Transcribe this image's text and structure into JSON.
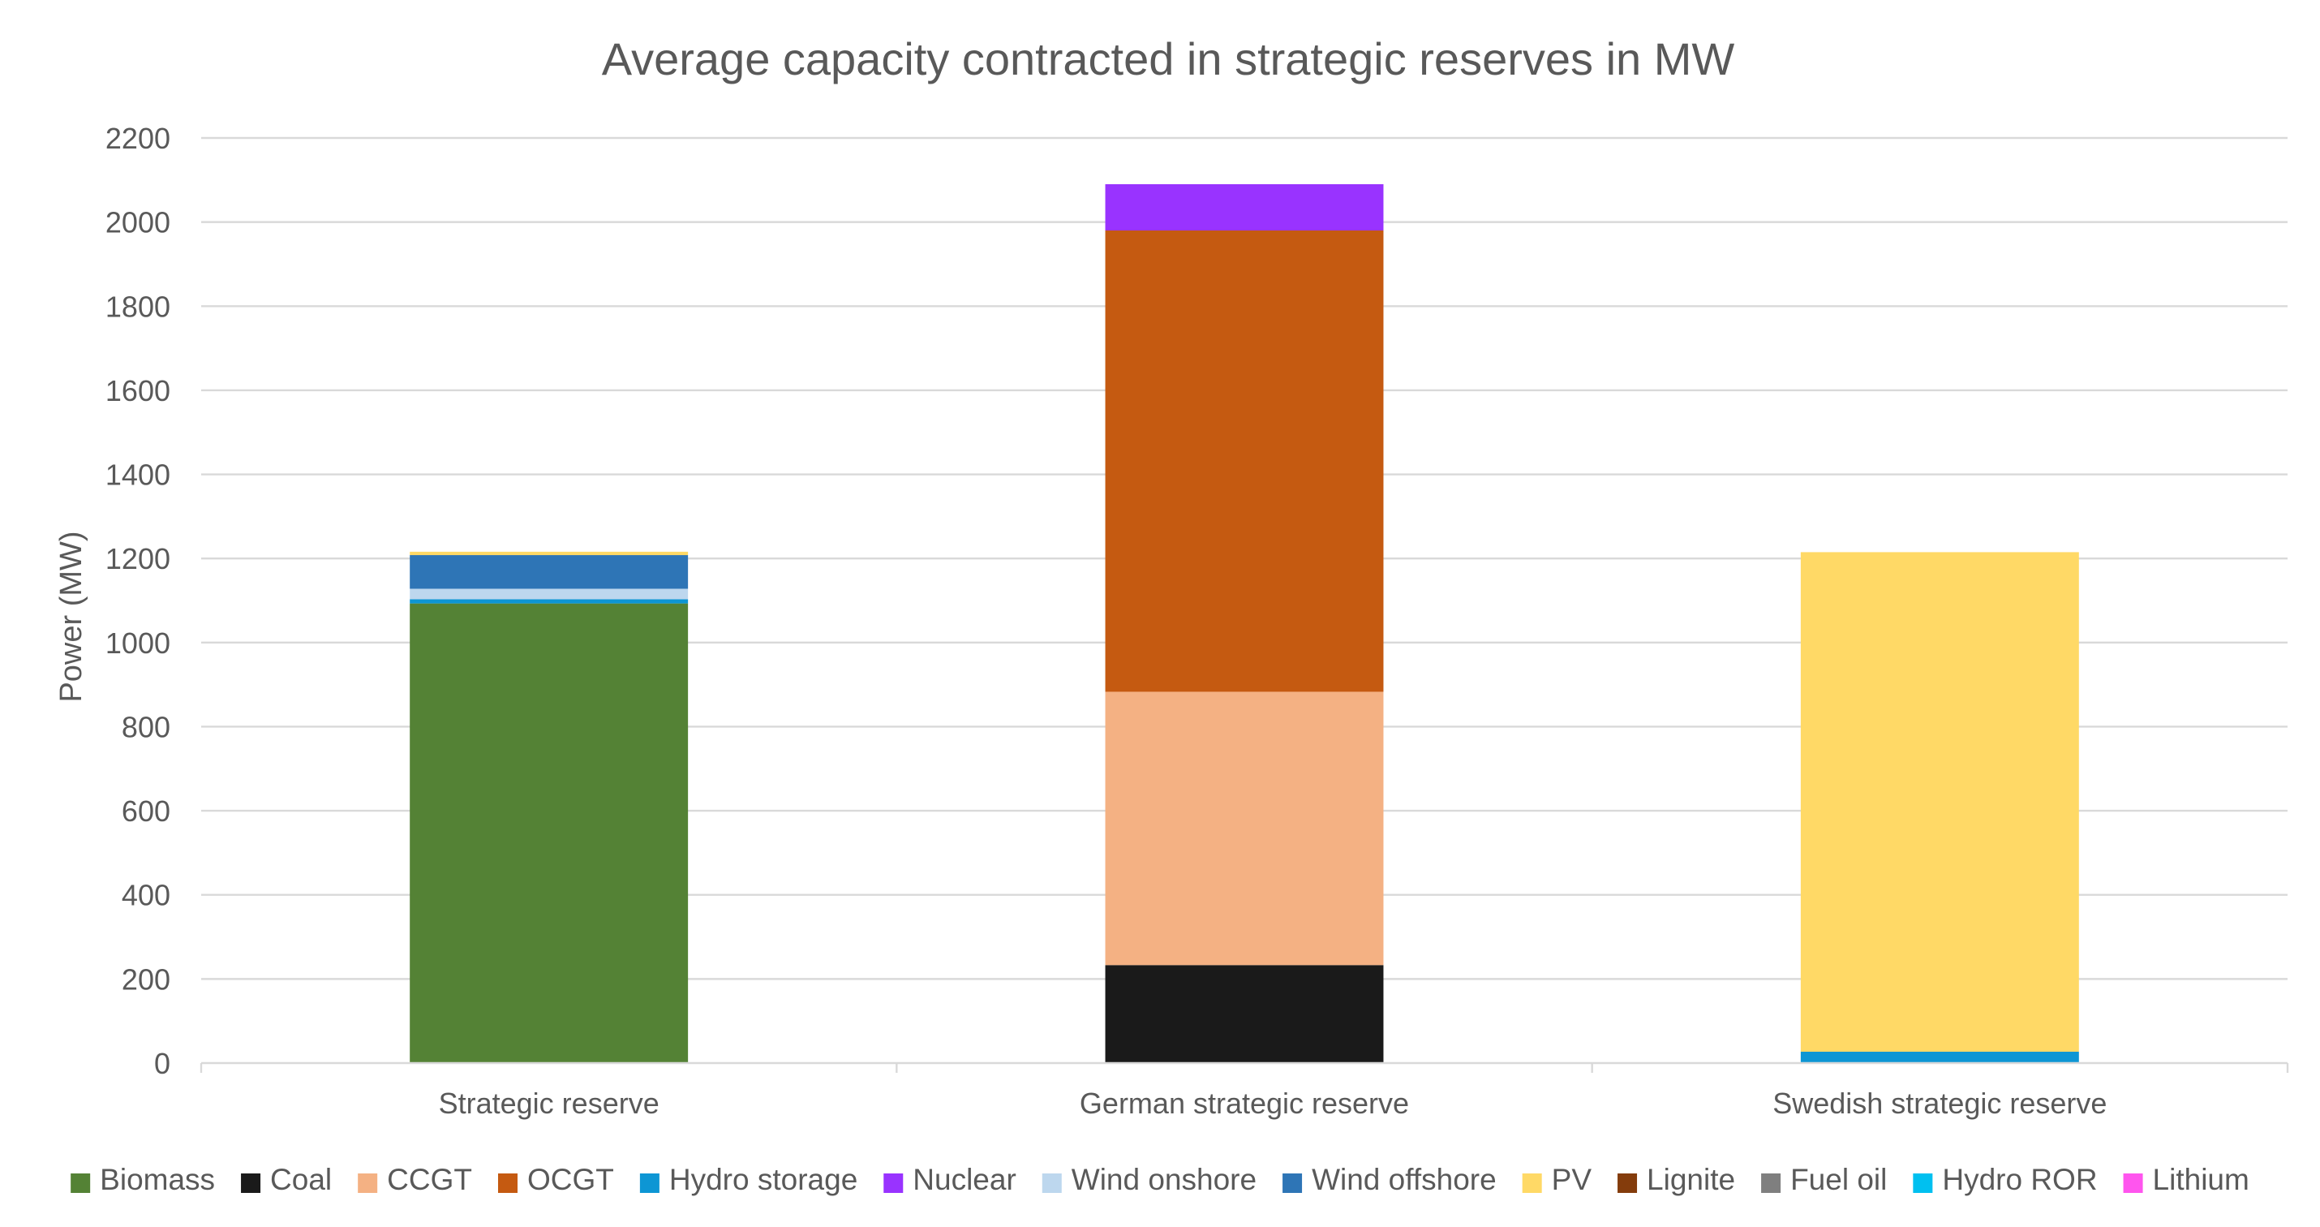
{
  "chart_data": {
    "type": "bar",
    "stacked": true,
    "title": "Average capacity contracted in strategic reserves in MW",
    "xlabel": "",
    "ylabel": "Power (MW)",
    "ylim": [
      0,
      2200
    ],
    "yticks": [
      0,
      200,
      400,
      600,
      800,
      1000,
      1200,
      1400,
      1600,
      1800,
      2000,
      2200
    ],
    "grid": true,
    "legend_position": "bottom",
    "categories": [
      "Strategic reserve",
      "German strategic reserve",
      "Swedish strategic reserve"
    ],
    "series": [
      {
        "name": "Biomass",
        "color": "#548235",
        "values": [
          1093,
          0,
          0
        ]
      },
      {
        "name": "Coal",
        "color": "#1a1a1a",
        "values": [
          0,
          233,
          0
        ]
      },
      {
        "name": "CCGT",
        "color": "#f4b183",
        "values": [
          0,
          650,
          0
        ]
      },
      {
        "name": "OCGT",
        "color": "#c55a11",
        "values": [
          0,
          1097,
          0
        ]
      },
      {
        "name": "Hydro storage",
        "color": "#0d96d4",
        "values": [
          10,
          0,
          27
        ]
      },
      {
        "name": "Nuclear",
        "color": "#9933ff",
        "values": [
          0,
          110,
          0
        ]
      },
      {
        "name": "Wind onshore",
        "color": "#bdd7ee",
        "values": [
          25,
          0,
          0
        ]
      },
      {
        "name": "Wind offshore",
        "color": "#2e75b6",
        "values": [
          80,
          0,
          0
        ]
      },
      {
        "name": "PV",
        "color": "#ffd966",
        "values": [
          8,
          0,
          1188
        ]
      },
      {
        "name": "Lignite",
        "color": "#843c0c",
        "values": [
          0,
          0,
          0
        ]
      },
      {
        "name": "Fuel oil",
        "color": "#7f7f7f",
        "values": [
          0,
          0,
          0
        ]
      },
      {
        "name": "Hydro ROR",
        "color": "#00c0f0",
        "values": [
          0,
          0,
          0
        ]
      },
      {
        "name": "Lithium",
        "color": "#ff55ee",
        "values": [
          0,
          0,
          0
        ]
      }
    ]
  }
}
